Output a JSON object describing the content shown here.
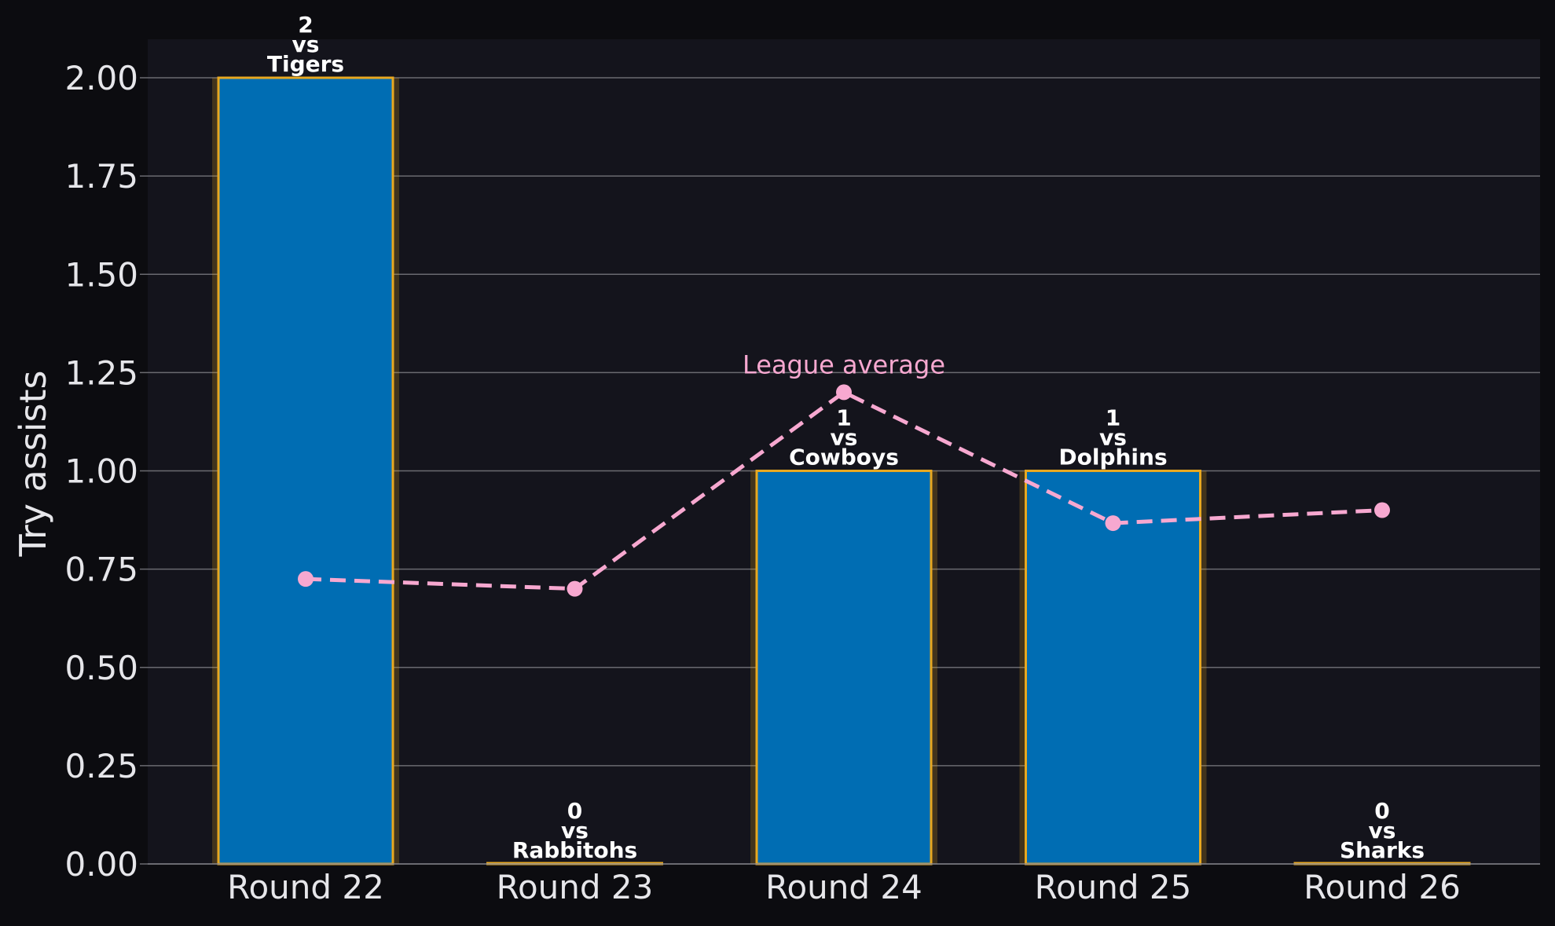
{
  "chart_data": {
    "type": "bar",
    "title": "",
    "xlabel": "",
    "ylabel": "Try assists",
    "ylim": [
      0,
      2.1
    ],
    "yticks": [
      "0.00",
      "0.25",
      "0.50",
      "0.75",
      "1.00",
      "1.25",
      "1.50",
      "1.75",
      "2.00"
    ],
    "grid": true,
    "categories": [
      "Round 22",
      "Round 23",
      "Round 24",
      "Round 25",
      "Round 26"
    ],
    "series": [
      {
        "values": [
          2,
          0,
          1,
          1,
          0
        ],
        "opponents": [
          "Tigers",
          "Rabbitohs",
          "Cowboys",
          "Dolphins",
          "Sharks"
        ],
        "bar_labels": [
          [
            "2",
            "vs",
            "Tigers"
          ],
          [
            "0",
            "vs",
            "Rabbitohs"
          ],
          [
            "1",
            "vs",
            "Cowboys"
          ],
          [
            "1",
            "vs",
            "Dolphins"
          ],
          [
            "0",
            "vs",
            "Sharks"
          ]
        ],
        "color": "#006db3",
        "edge_color": "#e8a820"
      },
      {
        "type": "line",
        "values": [
          0.725,
          0.7,
          1.2,
          0.867,
          0.9
        ],
        "color": "#f7a8d0",
        "style": "dashed"
      }
    ],
    "annotations": [
      {
        "text": "League average",
        "x": "Round 24",
        "y": 1.2
      }
    ],
    "colors": {
      "background": "#0c0c10",
      "plot_area": "#14141c",
      "grid": "#6a6a70",
      "text": "#e6e6ea"
    }
  }
}
